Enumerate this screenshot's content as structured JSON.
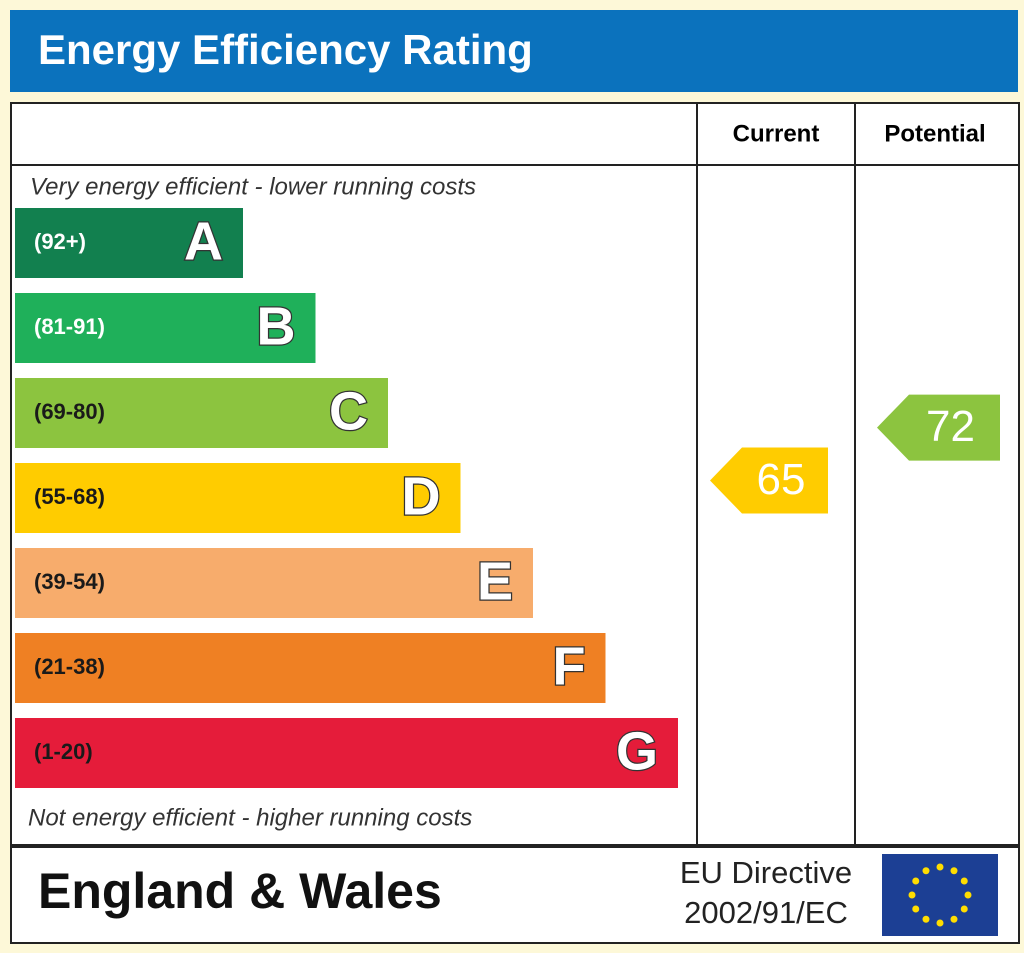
{
  "header": {
    "title": "Energy Efficiency Rating"
  },
  "columns": [
    "Current",
    "Potential"
  ],
  "top_note": "Very energy efficient - lower running costs",
  "bottom_note": "Not energy efficient - higher running costs",
  "bands": [
    {
      "range": "(92+)",
      "letter": "A",
      "color": "#12804f",
      "label_color": "#ffffff"
    },
    {
      "range": "(81-91)",
      "letter": "B",
      "color": "#1fb05a",
      "label_color": "#ffffff"
    },
    {
      "range": "(69-80)",
      "letter": "C",
      "color": "#8cc43f",
      "label_color": "#1a1a1a"
    },
    {
      "range": "(55-68)",
      "letter": "D",
      "color": "#ffcc00",
      "label_color": "#1a1a1a"
    },
    {
      "range": "(39-54)",
      "letter": "E",
      "color": "#f7ac6c",
      "label_color": "#1a1a1a"
    },
    {
      "range": "(21-38)",
      "letter": "F",
      "color": "#ef8023",
      "label_color": "#1a1a1a"
    },
    {
      "range": "(1-20)",
      "letter": "G",
      "color": "#e51c3a",
      "label_color": "#1a1a1a"
    }
  ],
  "ratings": {
    "current": 65,
    "potential": 72
  },
  "footer": {
    "region": "England & Wales",
    "directive": [
      "EU Directive",
      "2002/91/EC"
    ]
  }
}
